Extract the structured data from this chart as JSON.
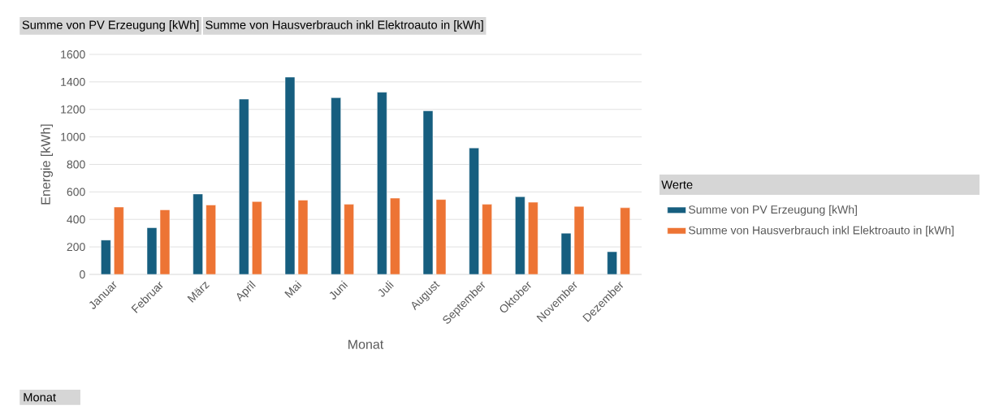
{
  "chart_data": {
    "type": "bar",
    "xlabel": "Monat",
    "ylabel": "Energie [kWh]",
    "legend_title": "Werte",
    "annotations": [
      "Summe von PV Erzeugung [kWh]",
      "Summe von Hausverbrauch inkl Elektroauto in [kWh]",
      "Monat"
    ],
    "categories": [
      "Januar",
      "Februar",
      "März",
      "April",
      "Mai",
      "Juni",
      "Juli",
      "August",
      "September",
      "Oktober",
      "November",
      "Dezember"
    ],
    "series": [
      {
        "name": "Summe von PV Erzeugung [kWh]",
        "color": "#165e7f",
        "values": [
          250,
          340,
          585,
          1275,
          1435,
          1285,
          1325,
          1190,
          920,
          565,
          300,
          165
        ]
      },
      {
        "name": "Summe von Hausverbrauch inkl Elektroauto in [kWh]",
        "color": "#ed7434",
        "values": [
          490,
          470,
          505,
          530,
          540,
          510,
          555,
          545,
          510,
          525,
          495,
          485
        ]
      }
    ],
    "ylim": [
      0,
      1600
    ],
    "yticks": [
      0,
      200,
      400,
      600,
      800,
      1000,
      1200,
      1400,
      1600
    ],
    "grid": "y",
    "legend": "right"
  }
}
